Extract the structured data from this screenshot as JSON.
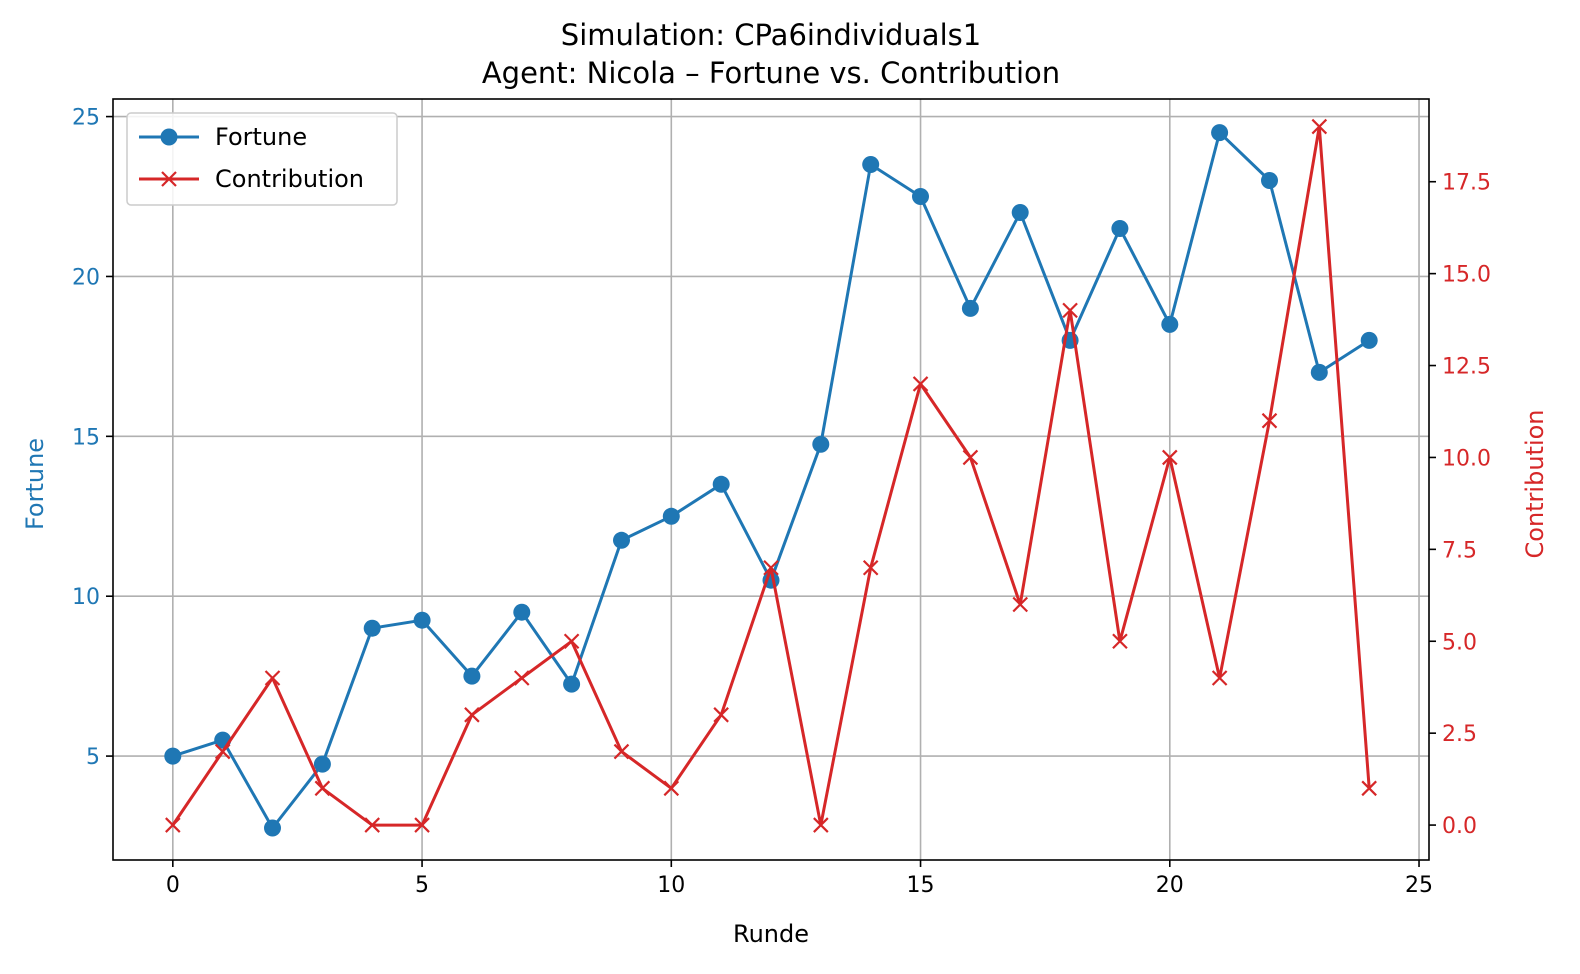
{
  "chart_data": {
    "type": "line",
    "title_line1": "Simulation: CPa6individuals1",
    "title_line2": "Agent: Nicola – Fortune vs. Contribution",
    "xlabel": "Runde",
    "ylabel_left": "Fortune",
    "ylabel_right": "Contribution",
    "xlim": [
      -1.2,
      25.2
    ],
    "ylim_left": [
      1.75,
      25.55
    ],
    "ylim_right": [
      -0.95,
      19.75
    ],
    "x_ticks": [
      0,
      5,
      10,
      15,
      20,
      25
    ],
    "x_tick_labels": [
      "0",
      "5",
      "10",
      "15",
      "20",
      "25"
    ],
    "y_left_ticks": [
      5,
      10,
      15,
      20,
      25
    ],
    "y_left_tick_labels": [
      "5",
      "10",
      "15",
      "20",
      "25"
    ],
    "y_right_ticks": [
      0,
      2.5,
      5,
      7.5,
      10,
      12.5,
      15,
      17.5
    ],
    "y_right_tick_labels": [
      "0.0",
      "2.5",
      "5.0",
      "7.5",
      "10.0",
      "12.5",
      "15.0",
      "17.5"
    ],
    "grid": true,
    "legend_position": "top-left",
    "x": [
      0,
      1,
      2,
      3,
      4,
      5,
      6,
      7,
      8,
      9,
      10,
      11,
      12,
      13,
      14,
      15,
      16,
      17,
      18,
      19,
      20,
      21,
      22,
      23,
      24
    ],
    "series": [
      {
        "name": "Fortune",
        "axis": "left",
        "marker": "circle",
        "color": "#1f77b4",
        "values": [
          5,
          5.5,
          2.75,
          4.75,
          9,
          9.25,
          7.5,
          9.5,
          7.25,
          11.75,
          12.5,
          13.5,
          10.5,
          14.75,
          23.5,
          22.5,
          19,
          22,
          18,
          21.5,
          18.5,
          24.5,
          23,
          17,
          18
        ]
      },
      {
        "name": "Contribution",
        "axis": "right",
        "marker": "x",
        "color": "#d62728",
        "values": [
          0,
          2,
          4,
          1,
          0,
          0,
          3,
          4,
          5,
          2,
          1,
          3,
          7,
          0,
          7,
          12,
          10,
          6,
          14,
          5,
          10,
          4,
          11,
          19,
          1
        ]
      }
    ]
  }
}
